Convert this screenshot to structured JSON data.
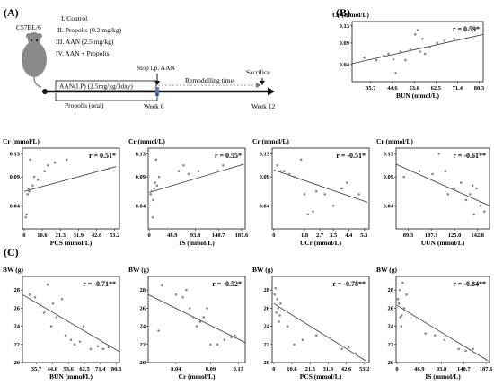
{
  "panels": {
    "A_label": "(A)",
    "B_label": "(B)",
    "C_label": "(C)"
  },
  "schema": {
    "mouse_label": "C57BL/6",
    "groups": [
      "I. Control",
      "II. Propolis (0.2 mg/kg)",
      "III. AAN (2.5 mg/kg)",
      "IV. AAN + Propolis"
    ],
    "stop_label": "Stop i.p. AAN",
    "sacrifice_label": "Sacrifice",
    "aan_label": "AAN(I.P) (2.5mg/kg/3day)",
    "remodelling_label": "Remodelling time",
    "propolis_label": "Propolis (oral)",
    "week6_label": "Week 6",
    "week12_label": "Week 12",
    "colors": {
      "timeline": "#111111",
      "week6_marker": "#5b7fb5",
      "arrow": "#7a7a7a",
      "mouse_body": "#8a8a8a"
    }
  },
  "chart_data": [
    {
      "id": "B1",
      "type": "scatter",
      "ylabel": "Cr (mmol/L)",
      "xlabel": "BUN (mmol/L)",
      "r_text": "r = 0.59*",
      "xticks": [
        "35.7",
        "44.6",
        "53.6",
        "62.5",
        "71.4",
        "80.3"
      ],
      "xlim": [
        28,
        82
      ],
      "yticks": [
        "0.04",
        "0.09",
        "0.13"
      ],
      "ylim": [
        0.0,
        0.14
      ],
      "points": [
        [
          33,
          0.056
        ],
        [
          38,
          0.05
        ],
        [
          41,
          0.06
        ],
        [
          43,
          0.065
        ],
        [
          45,
          0.052
        ],
        [
          46,
          0.02
        ],
        [
          48,
          0.07
        ],
        [
          50,
          0.05
        ],
        [
          52,
          0.075
        ],
        [
          54,
          0.11
        ],
        [
          55,
          0.12
        ],
        [
          56,
          0.07
        ],
        [
          57,
          0.1
        ],
        [
          58,
          0.065
        ],
        [
          60,
          0.08
        ],
        [
          63,
          0.09
        ],
        [
          66,
          0.095
        ],
        [
          70,
          0.1
        ],
        [
          76,
          0.12
        ]
      ],
      "trend": [
        [
          28,
          0.042
        ],
        [
          82,
          0.11
        ]
      ]
    },
    {
      "id": "B2",
      "type": "scatter",
      "ylabel": "Cr (mmol/L)",
      "xlabel": "PCS (mmol/L)",
      "r_text": "r = 0.51*",
      "xticks": [
        "0",
        "10.6",
        "21.3",
        "31.9",
        "42.6",
        "53.2"
      ],
      "xlim": [
        -1,
        56
      ],
      "yticks": [
        "0.04",
        "0.09",
        "0.13"
      ],
      "ylim": [
        0.0,
        0.14
      ],
      "points": [
        [
          1,
          0.02
        ],
        [
          1.5,
          0.025
        ],
        [
          2,
          0.06
        ],
        [
          2.5,
          0.07
        ],
        [
          3,
          0.065
        ],
        [
          3.5,
          0.12
        ],
        [
          5,
          0.075
        ],
        [
          6,
          0.09
        ],
        [
          8,
          0.085
        ],
        [
          12,
          0.1
        ],
        [
          14,
          0.11
        ],
        [
          18,
          0.115
        ],
        [
          25,
          0.12
        ],
        [
          43,
          0.1
        ],
        [
          50,
          0.105
        ]
      ],
      "trend": [
        [
          0,
          0.065
        ],
        [
          54,
          0.108
        ]
      ]
    },
    {
      "id": "B3",
      "type": "scatter",
      "ylabel": "Cr (mmol/L)",
      "xlabel": "IS (mmol/L)",
      "r_text": "r = 0.55*",
      "xticks": [
        "0",
        "46.9",
        "93.8",
        "140.7",
        "187.6"
      ],
      "xlim": [
        -2,
        195
      ],
      "yticks": [
        "0.04",
        "0.09",
        "0.13"
      ],
      "ylim": [
        0.0,
        0.14
      ],
      "points": [
        [
          3,
          0.06
        ],
        [
          5,
          0.065
        ],
        [
          7,
          0.02
        ],
        [
          8,
          0.05
        ],
        [
          10,
          0.07
        ],
        [
          12,
          0.08
        ],
        [
          14,
          0.12
        ],
        [
          16,
          0.075
        ],
        [
          20,
          0.09
        ],
        [
          60,
          0.1
        ],
        [
          70,
          0.11
        ],
        [
          80,
          0.095
        ],
        [
          100,
          0.1
        ],
        [
          140,
          0.1
        ],
        [
          150,
          0.11
        ]
      ],
      "trend": [
        [
          0,
          0.063
        ],
        [
          192,
          0.112
        ]
      ]
    },
    {
      "id": "B4",
      "type": "scatter",
      "ylabel": "Cr (mmol/L)",
      "xlabel": "UCr (mmol/L)",
      "r_text": "r = -0.51*",
      "xticks": [
        "0",
        "1.8",
        "2.7",
        "3.5",
        "4.4",
        "5.3"
      ],
      "xlim": [
        -0.1,
        5.6
      ],
      "yticks": [
        "0.04",
        "0.09",
        "0.13"
      ],
      "ylim": [
        0.0,
        0.14
      ],
      "points": [
        [
          0.2,
          0.11
        ],
        [
          0.4,
          0.1
        ],
        [
          0.6,
          0.1
        ],
        [
          0.9,
          0.095
        ],
        [
          1.2,
          0.09
        ],
        [
          1.6,
          0.12
        ],
        [
          1.8,
          0.06
        ],
        [
          2.0,
          0.025
        ],
        [
          2.3,
          0.03
        ],
        [
          2.5,
          0.065
        ],
        [
          3.0,
          0.06
        ],
        [
          3.5,
          0.04
        ],
        [
          4.0,
          0.07
        ],
        [
          4.3,
          0.08
        ],
        [
          5.0,
          0.06
        ]
      ],
      "trend": [
        [
          0,
          0.102
        ],
        [
          5.5,
          0.046
        ]
      ]
    },
    {
      "id": "B5",
      "type": "scatter",
      "ylabel": "Cr (mmol/L)",
      "xlabel": "UUN (mmol/L)",
      "r_text": "r = -0.61**",
      "xticks": [
        "89.3",
        "107.1",
        "125.0",
        "142.8"
      ],
      "xlim": [
        80,
        152
      ],
      "yticks": [
        "0.04",
        "0.09",
        "0.13"
      ],
      "ylim": [
        0.0,
        0.14
      ],
      "points": [
        [
          86,
          0.09
        ],
        [
          98,
          0.1
        ],
        [
          108,
          0.095
        ],
        [
          113,
          0.13
        ],
        [
          118,
          0.1
        ],
        [
          120,
          0.06
        ],
        [
          125,
          0.07
        ],
        [
          130,
          0.08
        ],
        [
          134,
          0.05
        ],
        [
          137,
          0.06
        ],
        [
          139,
          0.075
        ],
        [
          140,
          0.025
        ],
        [
          142,
          0.07
        ],
        [
          145,
          0.04
        ],
        [
          148,
          0.03
        ]
      ],
      "trend": [
        [
          80,
          0.112
        ],
        [
          152,
          0.04
        ]
      ]
    },
    {
      "id": "C1",
      "type": "scatter",
      "ylabel": "BW (g)",
      "xlabel": "BUN (mmol/L)",
      "r_text": "r = -0.71**",
      "xticks": [
        "35.7",
        "44.6",
        "53.6",
        "62.5",
        "71.4",
        "80.3"
      ],
      "xlim": [
        28,
        82
      ],
      "yticks": [
        "20",
        "22",
        "24",
        "26",
        "28"
      ],
      "ylim": [
        20,
        29.5
      ],
      "points": [
        [
          32,
          27.5
        ],
        [
          35,
          27.2
        ],
        [
          38,
          26.3
        ],
        [
          40,
          25.5
        ],
        [
          42,
          28.6
        ],
        [
          44,
          24
        ],
        [
          45,
          26.5
        ],
        [
          47,
          25
        ],
        [
          50,
          27
        ],
        [
          52,
          23
        ],
        [
          55,
          22.5
        ],
        [
          57,
          22
        ],
        [
          60,
          22.3
        ],
        [
          62,
          24
        ],
        [
          66,
          21.5
        ],
        [
          70,
          21.8
        ],
        [
          73,
          21.5
        ],
        [
          76,
          21.7
        ]
      ],
      "trend": [
        [
          28,
          27.5
        ],
        [
          82,
          21.2
        ]
      ]
    },
    {
      "id": "C2",
      "type": "scatter",
      "ylabel": "BW (g)",
      "xlabel": "Cr (mmol/L)",
      "r_text": "r = -0.52*",
      "xticks": [
        "0.04",
        "0.09",
        "0.13"
      ],
      "xlim": [
        0.0,
        0.14
      ],
      "yticks": [
        "20",
        "22",
        "24",
        "26",
        "28"
      ],
      "ylim": [
        20,
        29.5
      ],
      "points": [
        [
          0.015,
          23.5
        ],
        [
          0.02,
          28.5
        ],
        [
          0.04,
          27.5
        ],
        [
          0.05,
          27.2
        ],
        [
          0.055,
          28
        ],
        [
          0.06,
          26
        ],
        [
          0.065,
          25
        ],
        [
          0.07,
          24
        ],
        [
          0.075,
          24.5
        ],
        [
          0.08,
          25
        ],
        [
          0.085,
          26
        ],
        [
          0.09,
          22
        ],
        [
          0.1,
          22
        ],
        [
          0.11,
          22.5
        ],
        [
          0.12,
          22.8
        ],
        [
          0.125,
          23
        ]
      ],
      "trend": [
        [
          0.0,
          27.5
        ],
        [
          0.14,
          22.2
        ]
      ]
    },
    {
      "id": "C3",
      "type": "scatter",
      "ylabel": "BW (g)",
      "xlabel": "PCS (mmol/L)",
      "r_text": "r = -0.78**",
      "xticks": [
        "0",
        "10.6",
        "21.3",
        "31.9",
        "42.6",
        "53.2"
      ],
      "xlim": [
        -1,
        56
      ],
      "yticks": [
        "20",
        "22",
        "24",
        "26",
        "28"
      ],
      "ylim": [
        20,
        29.5
      ],
      "points": [
        [
          0.5,
          27.5
        ],
        [
          1,
          28.2
        ],
        [
          1.5,
          25.5
        ],
        [
          2,
          27
        ],
        [
          2.5,
          26
        ],
        [
          3,
          24.5
        ],
        [
          3.5,
          25.2
        ],
        [
          4,
          26.5
        ],
        [
          8,
          24
        ],
        [
          12,
          22
        ],
        [
          17,
          22.5
        ],
        [
          25,
          23
        ],
        [
          40,
          21.5
        ],
        [
          44,
          21.7
        ],
        [
          48,
          21
        ]
      ],
      "trend": [
        [
          0,
          26.5
        ],
        [
          54,
          20.2
        ]
      ]
    },
    {
      "id": "C4",
      "type": "scatter",
      "ylabel": "BW (g)",
      "xlabel": "IS (mmol/L)",
      "r_text": "r = -0.84**",
      "xticks": [
        "0",
        "46.9",
        "93.8",
        "140.7",
        "187.6"
      ],
      "xlim": [
        -2,
        195
      ],
      "yticks": [
        "20",
        "22",
        "24",
        "26",
        "28"
      ],
      "ylim": [
        20,
        29.5
      ],
      "points": [
        [
          2,
          27
        ],
        [
          4,
          26.5
        ],
        [
          6,
          28
        ],
        [
          7,
          25
        ],
        [
          9,
          24
        ],
        [
          10,
          25.2
        ],
        [
          12,
          28.8
        ],
        [
          15,
          26
        ],
        [
          20,
          27.5
        ],
        [
          60,
          23.2
        ],
        [
          80,
          23
        ],
        [
          100,
          22.5
        ],
        [
          130,
          21.5
        ],
        [
          145,
          21.3
        ],
        [
          160,
          21.5
        ]
      ],
      "trend": [
        [
          0,
          26.3
        ],
        [
          192,
          20.2
        ]
      ]
    }
  ]
}
